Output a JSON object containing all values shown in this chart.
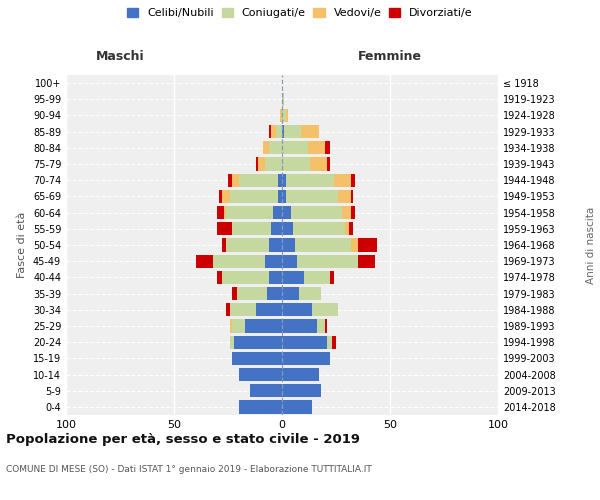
{
  "age_groups": [
    "0-4",
    "5-9",
    "10-14",
    "15-19",
    "20-24",
    "25-29",
    "30-34",
    "35-39",
    "40-44",
    "45-49",
    "50-54",
    "55-59",
    "60-64",
    "65-69",
    "70-74",
    "75-79",
    "80-84",
    "85-89",
    "90-94",
    "95-99",
    "100+"
  ],
  "birth_years": [
    "2014-2018",
    "2009-2013",
    "2004-2008",
    "1999-2003",
    "1994-1998",
    "1989-1993",
    "1984-1988",
    "1979-1983",
    "1974-1978",
    "1969-1973",
    "1964-1968",
    "1959-1963",
    "1954-1958",
    "1949-1953",
    "1944-1948",
    "1939-1943",
    "1934-1938",
    "1929-1933",
    "1924-1928",
    "1919-1923",
    "≤ 1918"
  ],
  "colors": {
    "celibi": "#4472C4",
    "coniugati": "#C5D8A0",
    "vedovi": "#F4C06A",
    "divorziati": "#CC0000"
  },
  "maschi": {
    "celibi": [
      20,
      15,
      20,
      23,
      22,
      17,
      12,
      7,
      6,
      8,
      6,
      5,
      4,
      2,
      2,
      0,
      0,
      0,
      0,
      0,
      0
    ],
    "coniugati": [
      0,
      0,
      0,
      0,
      2,
      6,
      12,
      14,
      22,
      24,
      20,
      18,
      22,
      22,
      18,
      8,
      6,
      3,
      0,
      0,
      0
    ],
    "vedovi": [
      0,
      0,
      0,
      0,
      0,
      1,
      0,
      0,
      0,
      0,
      0,
      0,
      1,
      4,
      3,
      3,
      3,
      2,
      1,
      0,
      0
    ],
    "divorziati": [
      0,
      0,
      0,
      0,
      0,
      0,
      2,
      2,
      2,
      8,
      2,
      7,
      3,
      1,
      2,
      1,
      0,
      1,
      0,
      0,
      0
    ]
  },
  "femmine": {
    "celibi": [
      14,
      18,
      17,
      22,
      21,
      16,
      14,
      8,
      10,
      7,
      6,
      5,
      4,
      2,
      2,
      0,
      0,
      1,
      0,
      0,
      0
    ],
    "coniugati": [
      0,
      0,
      0,
      0,
      2,
      4,
      12,
      10,
      12,
      28,
      26,
      24,
      24,
      24,
      22,
      13,
      12,
      8,
      2,
      1,
      0
    ],
    "vedovi": [
      0,
      0,
      0,
      0,
      0,
      0,
      0,
      0,
      0,
      0,
      3,
      2,
      4,
      6,
      8,
      8,
      8,
      8,
      1,
      0,
      0
    ],
    "divorziati": [
      0,
      0,
      0,
      0,
      2,
      1,
      0,
      0,
      2,
      8,
      9,
      2,
      2,
      1,
      2,
      1,
      2,
      0,
      0,
      0,
      0
    ]
  },
  "title": "Popolazione per età, sesso e stato civile - 2019",
  "subtitle": "COMUNE DI MESE (SO) - Dati ISTAT 1° gennaio 2019 - Elaborazione TUTTITALIA.IT",
  "xlabel_left": "Maschi",
  "xlabel_right": "Femmine",
  "ylabel": "Fasce di età",
  "ylabel_right": "Anni di nascita",
  "xlim": 100,
  "legend_labels": [
    "Celibi/Nubili",
    "Coniugati/e",
    "Vedovi/e",
    "Divorziati/e"
  ],
  "background_color": "#efefef"
}
